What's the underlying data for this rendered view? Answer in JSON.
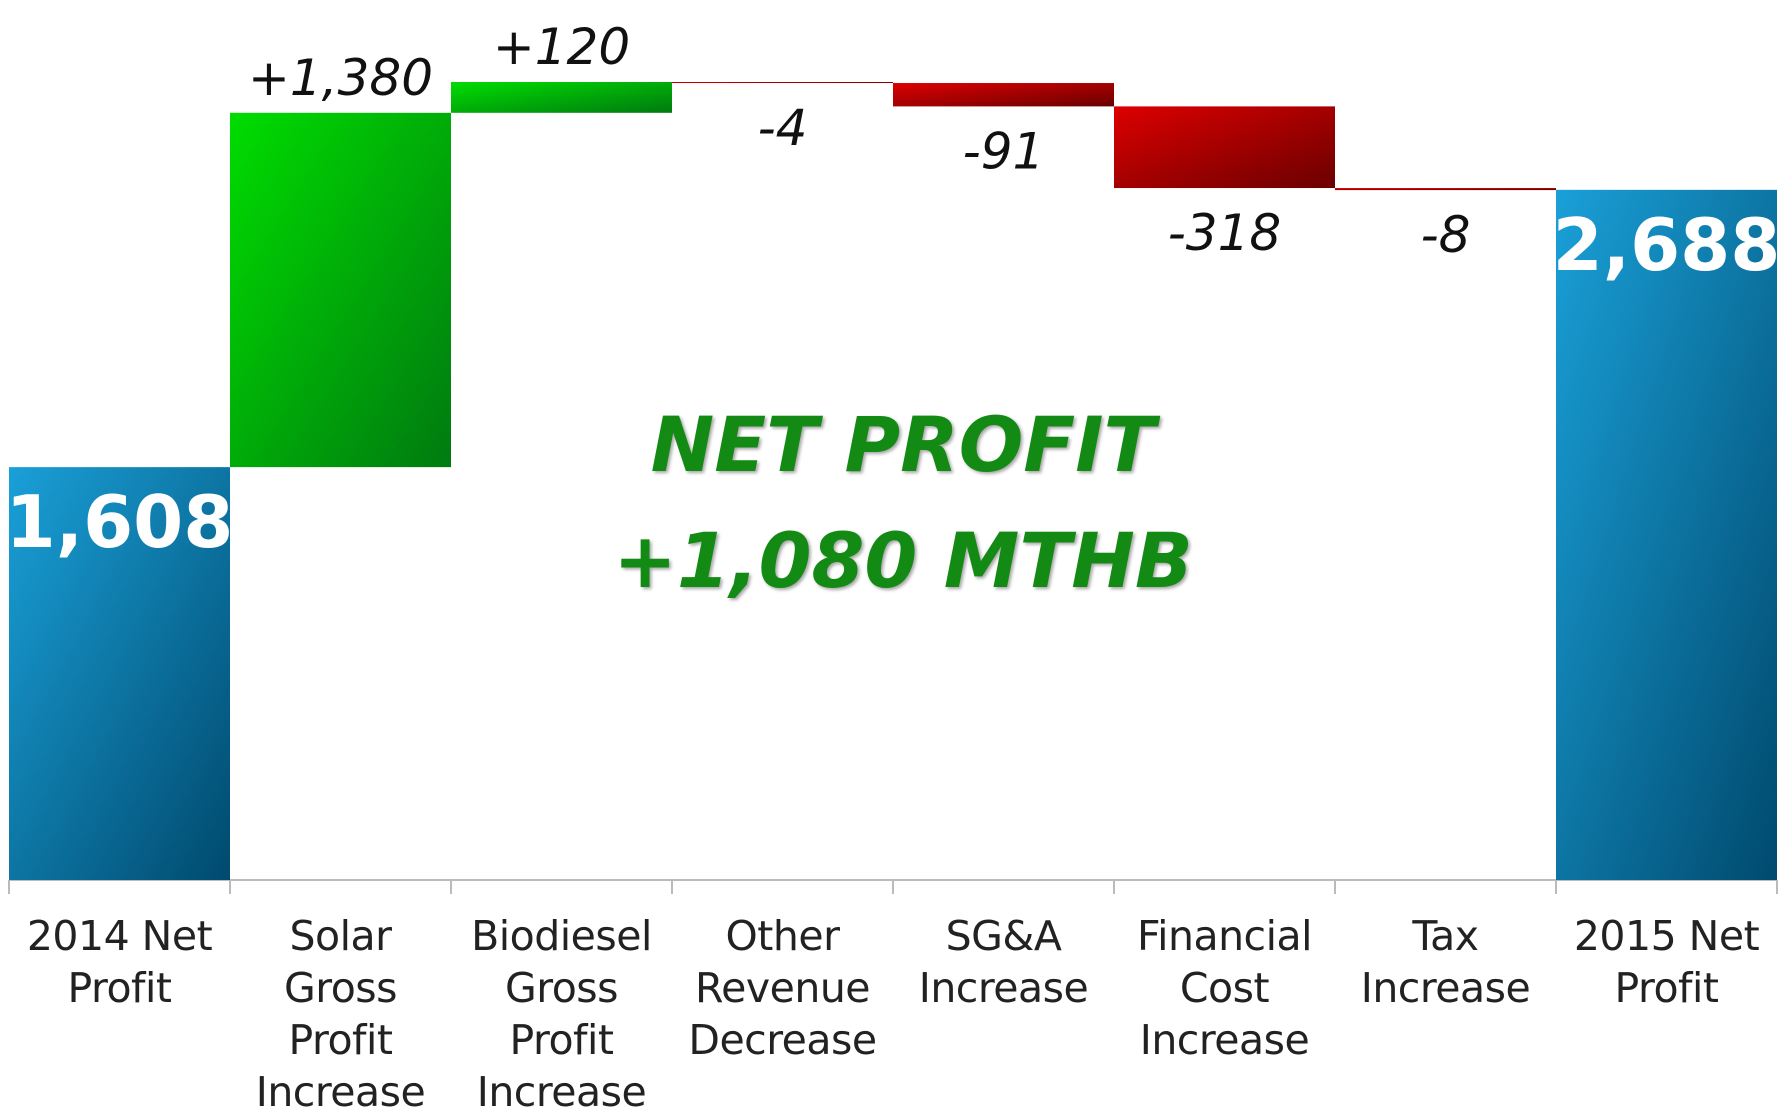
{
  "chart_data": {
    "type": "waterfall",
    "categories": [
      "2014 Net Profit",
      "Solar Gross Profit Increase",
      "Biodiesel Gross Profit Increase",
      "Other Revenue Decrease",
      "SG&A Increase",
      "Financial Cost Increase",
      "Tax Increase",
      "2015 Net Profit"
    ],
    "values": [
      1608,
      1380,
      120,
      -4,
      -91,
      -318,
      -8,
      2688
    ],
    "value_labels": [
      "1,608",
      "+1,380",
      "+120",
      "-4",
      "-91",
      "-318",
      "-8",
      "2,688"
    ],
    "is_total": [
      true,
      false,
      false,
      false,
      false,
      false,
      false,
      true
    ],
    "total_colors": [
      "#1aa0d8",
      "#004a6e"
    ],
    "increase_colors": [
      "#00dd00",
      "#007a10"
    ],
    "decrease_colors": [
      "#dd0000",
      "#6a0000"
    ],
    "annotation": [
      "NET PROFIT",
      "+1,080 MTHB"
    ],
    "annotation_color": "#138a13"
  }
}
